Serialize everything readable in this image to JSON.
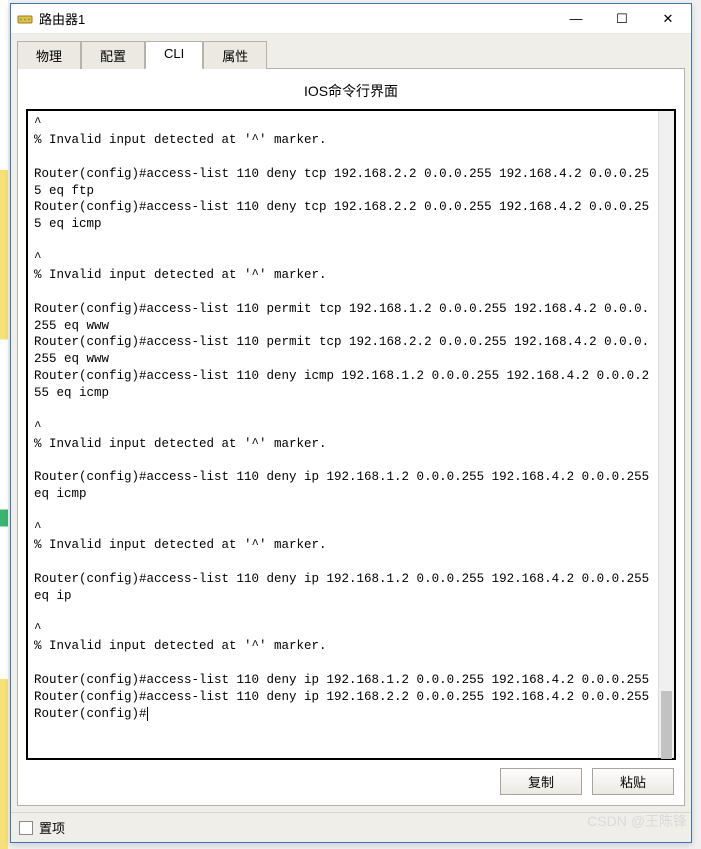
{
  "window": {
    "title": "路由器1",
    "buttons": {
      "min": "—",
      "max": "☐",
      "close": "✕"
    }
  },
  "tabs": {
    "items": [
      {
        "label": "物理",
        "active": false
      },
      {
        "label": "配置",
        "active": false
      },
      {
        "label": "CLI",
        "active": true
      },
      {
        "label": "属性",
        "active": false
      }
    ]
  },
  "panel": {
    "title": "IOS命令行界面"
  },
  "terminal": {
    "font_family": "Courier New",
    "font_size_pt": 9,
    "bg_color": "#ffffff",
    "fg_color": "#000000",
    "border_color": "#000000",
    "lines": [
      "^",
      "% Invalid input detected at '^' marker.",
      "\t",
      "Router(config)#access-list 110 deny tcp 192.168.2.2 0.0.0.255 192.168.4.2 0.0.0.255 eq ftp",
      "Router(config)#access-list 110 deny tcp 192.168.2.2 0.0.0.255 192.168.4.2 0.0.0.255 eq icmp",
      "",
      "^",
      "% Invalid input detected at '^' marker.",
      "\t",
      "Router(config)#access-list 110 permit tcp 192.168.1.2 0.0.0.255 192.168.4.2 0.0.0.255 eq www",
      "Router(config)#access-list 110 permit tcp 192.168.2.2 0.0.0.255 192.168.4.2 0.0.0.255 eq www",
      "Router(config)#access-list 110 deny icmp 192.168.1.2 0.0.0.255 192.168.4.2 0.0.0.255 eq icmp",
      "",
      "^",
      "% Invalid input detected at '^' marker.",
      "\t",
      "Router(config)#access-list 110 deny ip 192.168.1.2 0.0.0.255 192.168.4.2 0.0.0.255 eq icmp",
      "",
      "^",
      "% Invalid input detected at '^' marker.",
      "\t",
      "Router(config)#access-list 110 deny ip 192.168.1.2 0.0.0.255 192.168.4.2 0.0.0.255 eq ip",
      "",
      "^",
      "% Invalid input detected at '^' marker.",
      "\t",
      "Router(config)#access-list 110 deny ip 192.168.1.2 0.0.0.255 192.168.4.2 0.0.0.255",
      "Router(config)#access-list 110 deny ip 192.168.2.2 0.0.0.255 192.168.4.2 0.0.0.255",
      "Router(config)#"
    ],
    "prompt": "Router(config)#"
  },
  "buttons": {
    "copy": "复制",
    "paste": "粘贴"
  },
  "footer": {
    "checkbox_label": "置项",
    "checked": false
  },
  "watermark": "CSDN @王陈锋",
  "colors": {
    "window_border": "#3a76b8",
    "panel_bg": "#f0eee9",
    "tab_border": "#b5b2ab",
    "tab_inactive_bg": "#ece9e2",
    "tab_active_bg": "#ffffff",
    "scrollbar_track": "#f0f0f0",
    "scrollbar_thumb": "#c2c2c2"
  }
}
